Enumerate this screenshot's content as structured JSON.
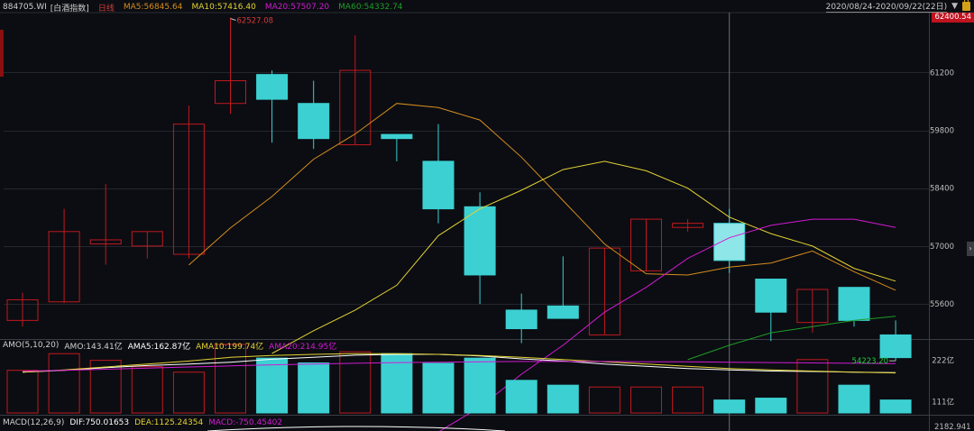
{
  "header": {
    "code": "884705.WI",
    "name": "[白酒指数]",
    "period": "日线",
    "ma5": "MA5:56845.64",
    "ma10": "MA10:57416.40",
    "ma20": "MA20:57507.20",
    "ma60": "MA60:54332.74",
    "date_range": "2020/08/24-2020/09/22(22日)",
    "last_price_tag": "62400.54"
  },
  "sub1": {
    "label": "AMO(5,10,20)",
    "amo": "AMO:143.41亿",
    "ama5": "AMA5:162.87亿",
    "ama10": "AMA10:199.74亿",
    "ama20": "AMA20:214.95亿"
  },
  "sub2": {
    "label": "MACD(12,26,9)",
    "dif": "DIF:750.01653",
    "dea": "DEA:1125.24354",
    "macd": "MACD:-750.45402"
  },
  "colors": {
    "up": "#c0191f",
    "down": "#3cd0d2",
    "ma5": "#d58c1e",
    "ma10": "#e3d233",
    "ma20": "#d21ad2",
    "ma60": "#1f9c27",
    "label_red": "#d53a3a"
  },
  "chart_data": {
    "type": "candlestick",
    "price_axis": {
      "ylim": [
        54750,
        62560
      ],
      "ticks": [
        "61200",
        "59800",
        "58400",
        "57000",
        "55600"
      ]
    },
    "annotations": {
      "high_label": "62527.08",
      "low_label": "54223.20"
    },
    "candles": [
      {
        "open": 55200,
        "close": 55700,
        "high": 55870,
        "low": 55050
      },
      {
        "open": 55650,
        "close": 57350,
        "high": 57900,
        "low": 55620
      },
      {
        "open": 57050,
        "close": 57150,
        "high": 58500,
        "low": 56550
      },
      {
        "open": 57000,
        "close": 57350,
        "high": 57350,
        "low": 56700
      },
      {
        "open": 56800,
        "close": 59950,
        "high": 60400,
        "low": 56700
      },
      {
        "open": 60450,
        "close": 61000,
        "high": 62527.08,
        "low": 60200
      },
      {
        "open": 61150,
        "close": 60550,
        "high": 61250,
        "low": 59500
      },
      {
        "open": 60450,
        "close": 59600,
        "high": 61000,
        "low": 59350
      },
      {
        "open": 59450,
        "close": 61250,
        "high": 62100,
        "low": 59450
      },
      {
        "open": 59700,
        "close": 59600,
        "high": 59700,
        "low": 59050
      },
      {
        "open": 59050,
        "close": 57900,
        "high": 59950,
        "low": 57550
      },
      {
        "open": 57950,
        "close": 56300,
        "high": 58300,
        "low": 55600
      },
      {
        "open": 55450,
        "close": 55000,
        "high": 55850,
        "low": 54650
      },
      {
        "open": 55550,
        "close": 55250,
        "high": 56750,
        "low": 55250
      },
      {
        "open": 54850,
        "close": 56950,
        "high": 56950,
        "low": 54850
      },
      {
        "open": 56400,
        "close": 57650,
        "high": 57650,
        "low": 56400
      },
      {
        "open": 57450,
        "close": 57550,
        "high": 57650,
        "low": 57350
      },
      {
        "open": 57550,
        "close": 56650,
        "high": 57900,
        "low": 56350
      },
      {
        "open": 56200,
        "close": 55400,
        "high": 56200,
        "low": 54700
      },
      {
        "open": 55150,
        "close": 55950,
        "high": 55950,
        "low": 54900
      },
      {
        "open": 56000,
        "close": 55200,
        "high": 56000,
        "low": 55050
      },
      {
        "open": 54850,
        "close": 54300,
        "high": 55200,
        "low": 54223.2
      }
    ],
    "ma5": [
      null,
      null,
      null,
      null,
      56540,
      57440,
      58200,
      59100,
      59710,
      60450,
      60350,
      60050,
      59150,
      58100,
      57050,
      56330,
      56300,
      56490,
      56590,
      56880,
      56380,
      55930
    ],
    "ma10": [
      null,
      null,
      null,
      null,
      null,
      null,
      54400,
      54950,
      55450,
      56050,
      57250,
      57900,
      58350,
      58850,
      59050,
      58820,
      58400,
      57700,
      57300,
      57000,
      56460,
      56150
    ],
    "ma20": [
      null,
      null,
      null,
      null,
      null,
      null,
      null,
      null,
      null,
      null,
      52500,
      53100,
      53900,
      54600,
      55400,
      56000,
      56700,
      57200,
      57500,
      57650,
      57650,
      57450
    ],
    "ma60": [
      null,
      null,
      null,
      null,
      null,
      null,
      null,
      null,
      null,
      null,
      null,
      null,
      null,
      null,
      null,
      null,
      54250,
      54600,
      54900,
      55050,
      55200,
      55300
    ],
    "amo_axis": {
      "ylim": [
        80,
        260
      ],
      "ticks": [
        "222亿",
        "111亿"
      ]
    },
    "amo": [
      195,
      240,
      222,
      205,
      190,
      265,
      228,
      215,
      245,
      240,
      214,
      228,
      168,
      155,
      150,
      150,
      150,
      115,
      120,
      224,
      155,
      115
    ],
    "ama5": [
      190,
      195,
      202,
      208,
      212,
      217,
      225,
      230,
      236,
      238,
      238,
      234,
      226,
      220,
      212,
      206,
      200,
      196,
      193,
      192,
      190,
      189
    ],
    "ama10": [
      190,
      196,
      204,
      212,
      220,
      230,
      235,
      238,
      240,
      240,
      238,
      235,
      230,
      224,
      218,
      212,
      206,
      200,
      196,
      193,
      190,
      188
    ],
    "ama20": [
      193,
      195,
      198,
      201,
      204,
      207,
      210,
      212,
      214,
      216,
      217,
      218,
      219,
      219,
      219,
      218,
      218,
      217,
      216,
      215,
      214,
      213
    ],
    "macd_axis_label": "2182.941"
  }
}
